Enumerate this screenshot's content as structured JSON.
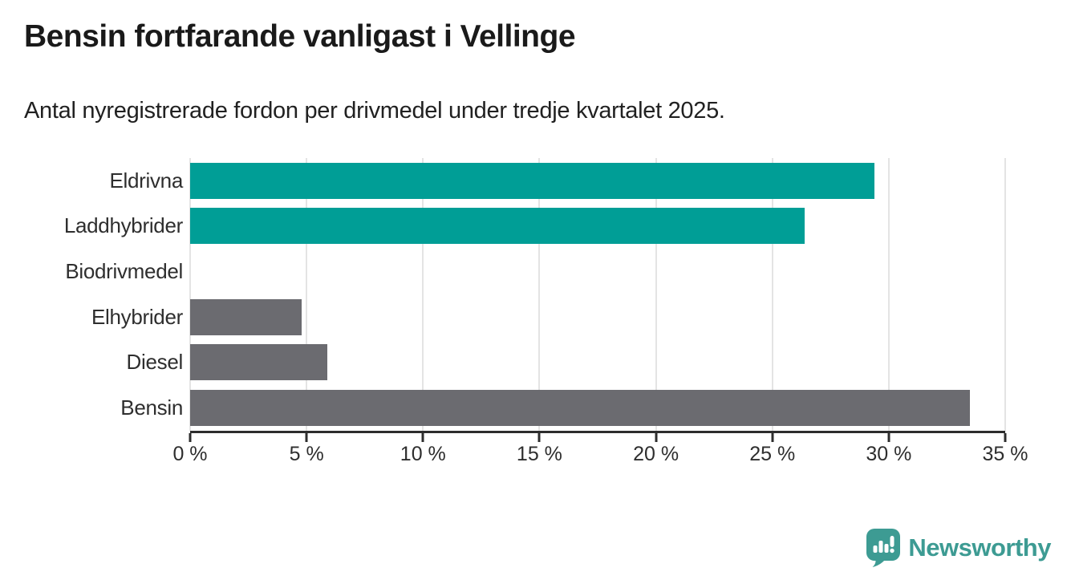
{
  "header": {
    "title": "Bensin fortfarande vanligast i Vellinge",
    "subtitle": "Antal nyregistrerade fordon per drivmedel under tredje kvartalet 2025."
  },
  "chart_data": {
    "type": "bar",
    "orientation": "horizontal",
    "title": "Bensin fortfarande vanligast i Vellinge",
    "subtitle": "Antal nyregistrerade fordon per drivmedel under tredje kvartalet 2025.",
    "categories": [
      "Eldrivna",
      "Laddhybrider",
      "Biodrivmedel",
      "Elhybrider",
      "Diesel",
      "Bensin"
    ],
    "values": [
      29.4,
      26.4,
      0,
      4.8,
      5.9,
      33.5
    ],
    "unit": "%",
    "xlim": [
      0,
      35
    ],
    "x_ticks": [
      0,
      5,
      10,
      15,
      20,
      25,
      30,
      35
    ],
    "x_tick_labels": [
      "0 %",
      "5 %",
      "10 %",
      "15 %",
      "20 %",
      "25 %",
      "30 %",
      "35 %"
    ],
    "bar_colors": [
      "#009e96",
      "#009e96",
      "#6b6b70",
      "#6b6b70",
      "#6b6b70",
      "#6b6b70"
    ],
    "accent_color": "#009e96",
    "default_color": "#6b6b70",
    "grid": true,
    "legend": false
  },
  "footer": {
    "brand": "Newsworthy",
    "brand_color": "#3d9b93"
  }
}
